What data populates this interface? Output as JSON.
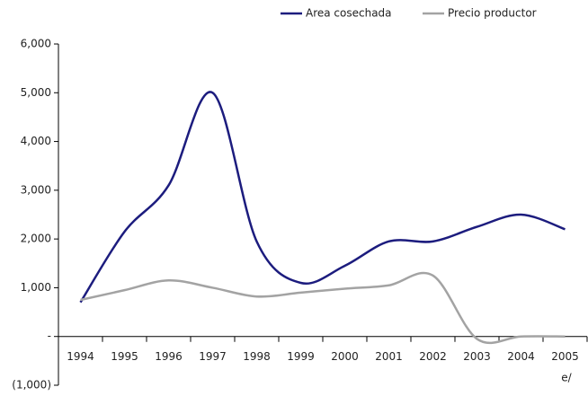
{
  "chart_data": {
    "type": "line",
    "categories": [
      "1994",
      "1995",
      "1996",
      "1997",
      "1998",
      "1999",
      "2000",
      "2001",
      "2002",
      "2003",
      "2004",
      "2005"
    ],
    "annotation": "e/",
    "series": [
      {
        "name": "Area cosechada",
        "color": "#1c1c7e",
        "values": [
          700,
          2150,
          3100,
          5000,
          1950,
          1100,
          1450,
          1950,
          1950,
          2250,
          2500,
          2200
        ]
      },
      {
        "name": "Precio productor",
        "color": "#a3a3a3",
        "values": [
          750,
          950,
          1150,
          1000,
          820,
          900,
          980,
          1050,
          1250,
          -50,
          0,
          0
        ]
      }
    ],
    "ylim": [
      -1000,
      6000
    ],
    "yticks": [
      {
        "value": -1000,
        "label": "(1,000)"
      },
      {
        "value": 0,
        "label": "-"
      },
      {
        "value": 1000,
        "label": "1,000"
      },
      {
        "value": 2000,
        "label": "2,000"
      },
      {
        "value": 3000,
        "label": "3,000"
      },
      {
        "value": 4000,
        "label": "4,000"
      },
      {
        "value": 5000,
        "label": "5,000"
      },
      {
        "value": 6000,
        "label": "6,000"
      }
    ],
    "legend": "top-right"
  }
}
